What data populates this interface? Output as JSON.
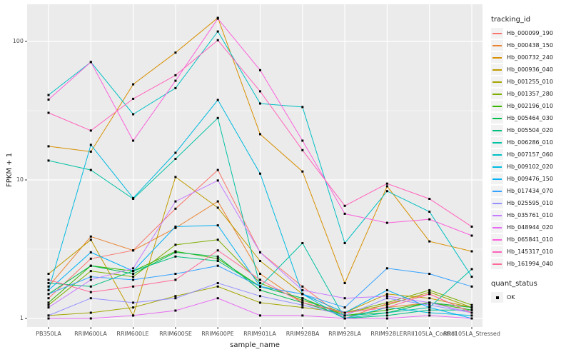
{
  "figure": {
    "panel_background": "#EBEBEB",
    "grid_color": "#FFFFFF",
    "axis_text_color": "#4D4D4D",
    "marker_color": "#000000"
  },
  "axes": {
    "x_title": "sample_name",
    "y_title": "FPKM + 1",
    "y_tick_labels": [
      "100",
      "10",
      "1"
    ]
  },
  "legend": {
    "tracking_title": "tracking_id",
    "quant_title": "quant_status",
    "quant_label": "OK"
  },
  "chart_data": {
    "type": "line",
    "title": "",
    "xlabel": "sample_name",
    "ylabel": "FPKM + 1",
    "log_y": true,
    "ylim": [
      1,
      160
    ],
    "y_major_ticks": [
      1,
      10,
      100
    ],
    "y_minor_ticks": [
      3.162,
      31.62
    ],
    "grid": true,
    "legend_position": "right",
    "point_marker": "black square (quant_status OK)",
    "categories": [
      "PB350LA",
      "RRIM600LA",
      "RRIM600LE",
      "RRIM600SE",
      "RRIM600PE",
      "RRIM901LA",
      "RRIM928BA",
      "RRIM928LA",
      "RRIM928LE",
      "RRII105LA_Control",
      "RRII105LA_Stressed"
    ],
    "series": [
      {
        "name": "Hb_000099_190",
        "color": "#F8766D",
        "values": [
          1.4,
          2.7,
          3.1,
          6.2,
          11.8,
          3.0,
          1.7,
          1.0,
          1.28,
          1.5,
          1.1
        ]
      },
      {
        "name": "Hb_000438_150",
        "color": "#EA8331",
        "values": [
          1.7,
          3.9,
          3.1,
          4.5,
          7.0,
          2.1,
          1.3,
          1.1,
          1.2,
          1.3,
          1.2
        ]
      },
      {
        "name": "Hb_000732_240",
        "color": "#D89000",
        "values": [
          17.5,
          16.0,
          49,
          83,
          148,
          21.4,
          11.5,
          1.8,
          9.0,
          3.6,
          3.05
        ]
      },
      {
        "name": "Hb_000936_040",
        "color": "#C09B00",
        "values": [
          2.1,
          3.7,
          1.05,
          10.5,
          6.3,
          2.6,
          1.5,
          1.1,
          1.5,
          1.4,
          1.2
        ]
      },
      {
        "name": "Hb_001255_010",
        "color": "#A3A500",
        "values": [
          1.05,
          1.1,
          1.2,
          1.45,
          1.7,
          1.3,
          1.2,
          1.1,
          1.25,
          1.55,
          1.2
        ]
      },
      {
        "name": "Hb_001357_280",
        "color": "#7CAE00",
        "values": [
          1.25,
          2.2,
          2.0,
          3.4,
          3.7,
          1.8,
          1.35,
          1.1,
          1.3,
          1.6,
          1.25
        ]
      },
      {
        "name": "Hb_002196_010",
        "color": "#39B600",
        "values": [
          1.3,
          2.4,
          2.2,
          3.05,
          2.7,
          1.7,
          1.4,
          1.05,
          1.15,
          1.3,
          1.15
        ]
      },
      {
        "name": "Hb_005464_030",
        "color": "#00BB4E",
        "values": [
          1.5,
          2.4,
          2.1,
          3.0,
          2.8,
          1.6,
          1.3,
          1.05,
          1.1,
          1.3,
          1.2
        ]
      },
      {
        "name": "Hb_005504_020",
        "color": "#00BF7D",
        "values": [
          1.8,
          1.7,
          2.2,
          2.8,
          2.6,
          1.7,
          1.4,
          1.0,
          1.05,
          1.15,
          1.15
        ]
      },
      {
        "name": "Hb_006286_010",
        "color": "#00C1A3",
        "values": [
          13.8,
          11.8,
          7.3,
          14.2,
          28,
          1.7,
          3.5,
          1.0,
          1.1,
          1.2,
          2.27
        ]
      },
      {
        "name": "Hb_007157_060",
        "color": "#00BFC4",
        "values": [
          41,
          71,
          29.8,
          46,
          118,
          35.6,
          33.6,
          3.5,
          8.3,
          5.9,
          2.0
        ]
      },
      {
        "name": "Hb_009102_020",
        "color": "#00BAE0",
        "values": [
          1.6,
          17.9,
          7.4,
          15.7,
          37.8,
          11.1,
          1.5,
          1.0,
          1.2,
          1.1,
          1.05
        ]
      },
      {
        "name": "Hb_009476_150",
        "color": "#00B0F6",
        "values": [
          1.6,
          3.0,
          2.2,
          4.6,
          4.7,
          1.7,
          1.5,
          1.1,
          1.6,
          1.2,
          1.0
        ]
      },
      {
        "name": "Hb_017434_070",
        "color": "#35A2FF",
        "values": [
          1.5,
          2.0,
          1.9,
          2.1,
          2.4,
          1.7,
          1.5,
          1.2,
          2.3,
          2.1,
          1.7
        ]
      },
      {
        "name": "Hb_025595_010",
        "color": "#9590FF",
        "values": [
          1.05,
          1.4,
          1.3,
          1.4,
          1.8,
          1.45,
          1.25,
          1.05,
          1.4,
          1.25,
          1.1
        ]
      },
      {
        "name": "Hb_035761_010",
        "color": "#C77CFF",
        "values": [
          1.2,
          1.9,
          2.3,
          7.0,
          9.9,
          3.0,
          1.6,
          1.4,
          1.45,
          1.3,
          1.1
        ]
      },
      {
        "name": "Hb_048944_020",
        "color": "#E76BF3",
        "values": [
          1.0,
          1.0,
          1.05,
          1.14,
          1.4,
          1.05,
          1.05,
          1.0,
          1.0,
          1.05,
          1.0
        ]
      },
      {
        "name": "Hb_065841_010",
        "color": "#FA62DB",
        "values": [
          38,
          71,
          19.2,
          52,
          146,
          62,
          19.2,
          5.7,
          4.9,
          5.2,
          3.96
        ]
      },
      {
        "name": "Hb_145317_010",
        "color": "#FF62BC",
        "values": [
          30.5,
          22.7,
          38.5,
          57,
          102,
          43.6,
          16.4,
          6.5,
          9.4,
          7.3,
          4.6
        ]
      },
      {
        "name": "Hb_161994_040",
        "color": "#FF6A98",
        "values": [
          1.9,
          1.55,
          1.7,
          1.9,
          3.1,
          1.9,
          1.3,
          1.1,
          1.2,
          1.5,
          1.1
        ]
      }
    ]
  }
}
